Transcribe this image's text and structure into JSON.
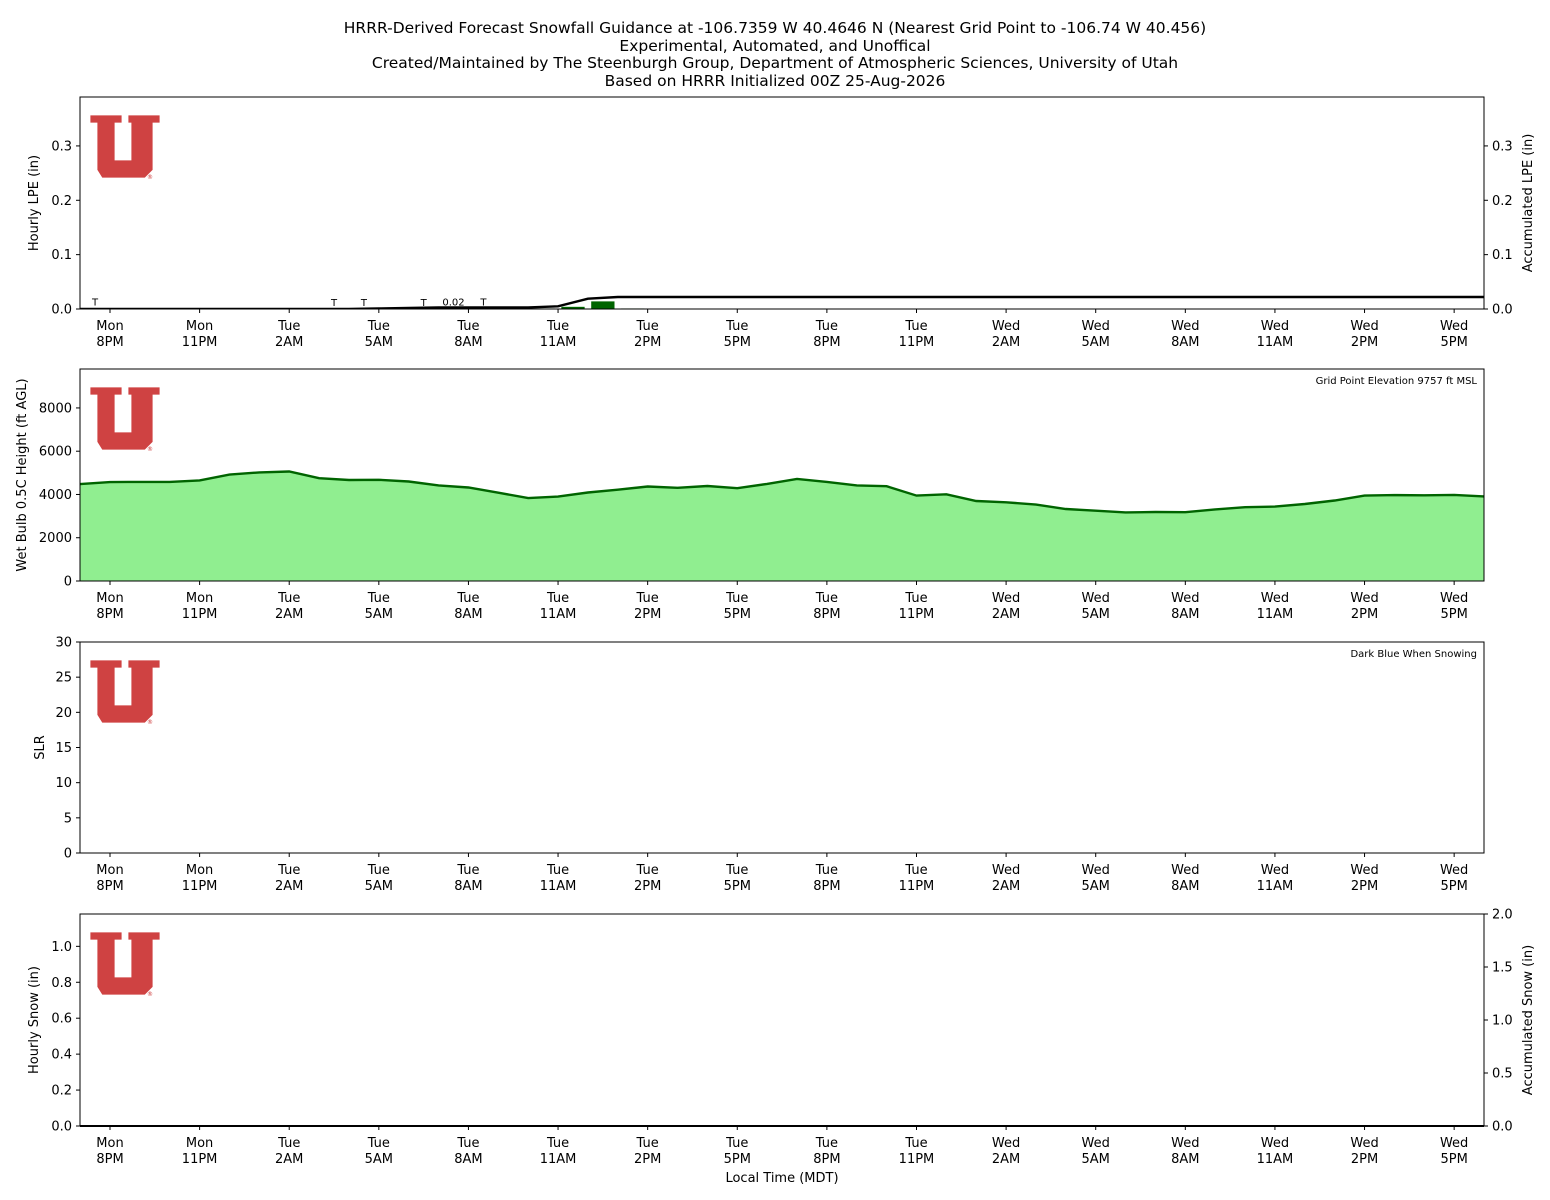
{
  "header": {
    "lines": [
      "HRRR-Derived Forecast Snowfall Guidance at -106.7359 W 40.4646 N (Nearest Grid Point to -106.74 W 40.456)",
      "Experimental, Automated, and Unoffical",
      "Created/Maintained by The Steenburgh Group, Department of Atmospheric Sciences, University of Utah",
      "Based on HRRR Initialized 00Z 25-Aug-2026"
    ]
  },
  "logo": {
    "description_icon": "university-of-utah-u-logo-icon",
    "color": "#cc3333",
    "registered": "®"
  },
  "x_axis": {
    "label": "Local Time (MDT)",
    "ticks": [
      [
        "Mon",
        "8PM"
      ],
      [
        "Mon",
        "11PM"
      ],
      [
        "Tue",
        "2AM"
      ],
      [
        "Tue",
        "5AM"
      ],
      [
        "Tue",
        "8AM"
      ],
      [
        "Tue",
        "11AM"
      ],
      [
        "Tue",
        "2PM"
      ],
      [
        "Tue",
        "5PM"
      ],
      [
        "Tue",
        "8PM"
      ],
      [
        "Tue",
        "11PM"
      ],
      [
        "Wed",
        "2AM"
      ],
      [
        "Wed",
        "5AM"
      ],
      [
        "Wed",
        "8AM"
      ],
      [
        "Wed",
        "11AM"
      ],
      [
        "Wed",
        "2PM"
      ],
      [
        "Wed",
        "5PM"
      ]
    ]
  },
  "chart_data": [
    {
      "type": "bar",
      "name": "hourly-lpe",
      "ylabel": "Hourly LPE (in)",
      "y2label": "Accumulated LPE (in)",
      "ylim": [
        0,
        0.39
      ],
      "y2lim": [
        0,
        0.39
      ],
      "yticks": [
        "0.0",
        "0.1",
        "0.2",
        "0.3"
      ],
      "y2ticks": [
        "0.0",
        "0.1",
        "0.2",
        "0.3"
      ],
      "x_hours_from_mon_8pm_start": -1,
      "hourly_values": [
        0.001,
        0,
        0,
        0,
        0,
        0,
        0,
        0,
        0,
        0,
        0,
        0,
        0.001,
        0.001,
        0.001,
        0.001,
        0.004,
        0.014,
        0.001,
        0,
        0,
        0,
        0,
        0,
        0,
        0,
        0,
        0,
        0,
        0,
        0,
        0,
        0,
        0,
        0,
        0,
        0,
        0,
        0,
        0,
        0,
        0,
        0,
        0,
        0,
        0,
        0,
        0
      ],
      "bar_labels": [
        {
          "hour": -1,
          "text": "T"
        },
        {
          "hour": 7,
          "text": "T"
        },
        {
          "hour": 8,
          "text": "T"
        },
        {
          "hour": 10,
          "text": "T"
        },
        {
          "hour": 11,
          "text": "0.02"
        },
        {
          "hour": 12,
          "text": "T"
        }
      ],
      "accumulated": [
        0,
        0,
        0,
        0,
        0,
        0,
        0,
        0,
        0,
        0,
        0.001,
        0.002,
        0.003,
        0.003,
        0.003,
        0.003,
        0.005,
        0.019,
        0.022,
        0.022
      ],
      "bar_color": "#006400",
      "line_color": "#000000"
    },
    {
      "type": "area",
      "name": "wet-bulb-height",
      "ylabel": "Wet Bulb 0.5C Height (ft AGL)",
      "annotation": "Grid Point Elevation 9757 ft MSL",
      "ylim": [
        0,
        9800
      ],
      "yticks": [
        "0",
        "2000",
        "4000",
        "6000",
        "8000"
      ],
      "values": [
        4480,
        4570,
        4580,
        4580,
        4650,
        4920,
        5020,
        5060,
        4750,
        4670,
        4680,
        4600,
        4420,
        4320,
        4080,
        3830,
        3900,
        4090,
        4220,
        4370,
        4310,
        4390,
        4290,
        4490,
        4720,
        4580,
        4420,
        4380,
        3950,
        4010,
        3700,
        3640,
        3530,
        3330,
        3250,
        3170,
        3190,
        3180,
        3310,
        3410,
        3440,
        3560,
        3720,
        3950,
        3970,
        3960,
        3980,
        3910
      ],
      "fill_color": "#90ee90",
      "line_color": "#006400"
    },
    {
      "type": "line",
      "name": "slr",
      "ylabel": "SLR",
      "annotation": "Dark Blue When Snowing",
      "ylim": [
        0,
        30
      ],
      "yticks": [
        "0",
        "5",
        "10",
        "15",
        "20",
        "25",
        "30"
      ],
      "values": []
    },
    {
      "type": "bar",
      "name": "hourly-snow",
      "ylabel": "Hourly Snow (in)",
      "y2label": "Accumulated Snow (in)",
      "ylim": [
        0,
        1.18
      ],
      "y2lim": [
        0,
        2.0
      ],
      "yticks": [
        "0.0",
        "0.2",
        "0.4",
        "0.6",
        "0.8",
        "1.0"
      ],
      "y2ticks": [
        "0.0",
        "0.5",
        "1.0",
        "1.5",
        "2.0"
      ],
      "hourly_values": [],
      "accumulated": [
        0,
        0
      ]
    }
  ]
}
